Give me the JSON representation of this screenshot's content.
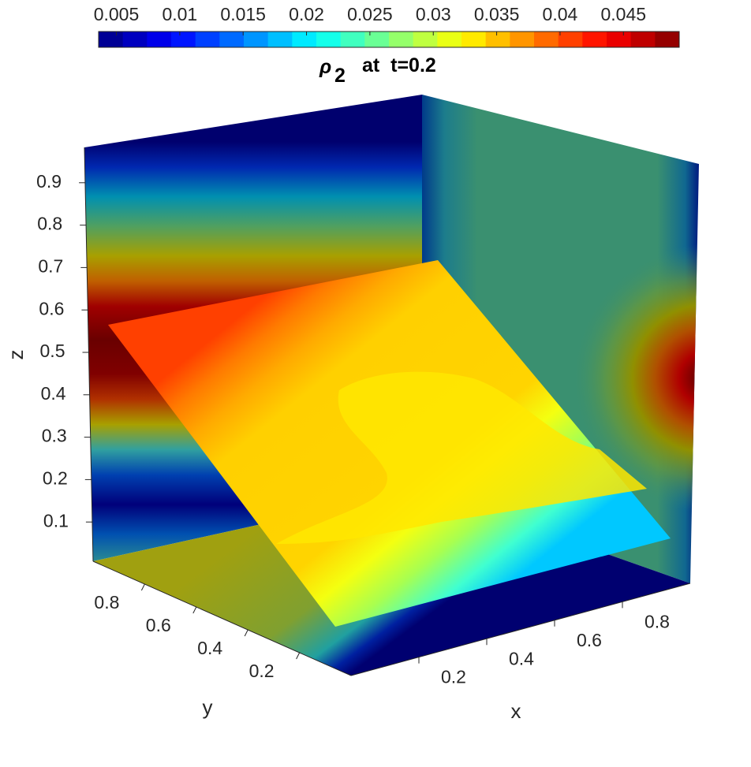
{
  "chart_data": {
    "type": "slice3d",
    "title": {
      "symbol": "ρ",
      "subscript": "2",
      "text": "at  t=0.2"
    },
    "colorbar": {
      "colormap": "jet",
      "levels": 24,
      "clim": [
        0.0036,
        0.0494
      ],
      "ticks": [
        0.005,
        0.01,
        0.015,
        0.02,
        0.025,
        0.03,
        0.035,
        0.04,
        0.045
      ]
    },
    "xlabel": "x",
    "ylabel": "y",
    "zlabel": "z",
    "xlim": [
      0,
      1
    ],
    "ylim": [
      0,
      1
    ],
    "zlim": [
      0,
      1
    ],
    "xticks": [
      0.2,
      0.4,
      0.6,
      0.8
    ],
    "yticks": [
      0.2,
      0.4,
      0.6,
      0.8
    ],
    "zticks": [
      0.1,
      0.2,
      0.3,
      0.4,
      0.5,
      0.6,
      0.7,
      0.8,
      0.9
    ]
  }
}
